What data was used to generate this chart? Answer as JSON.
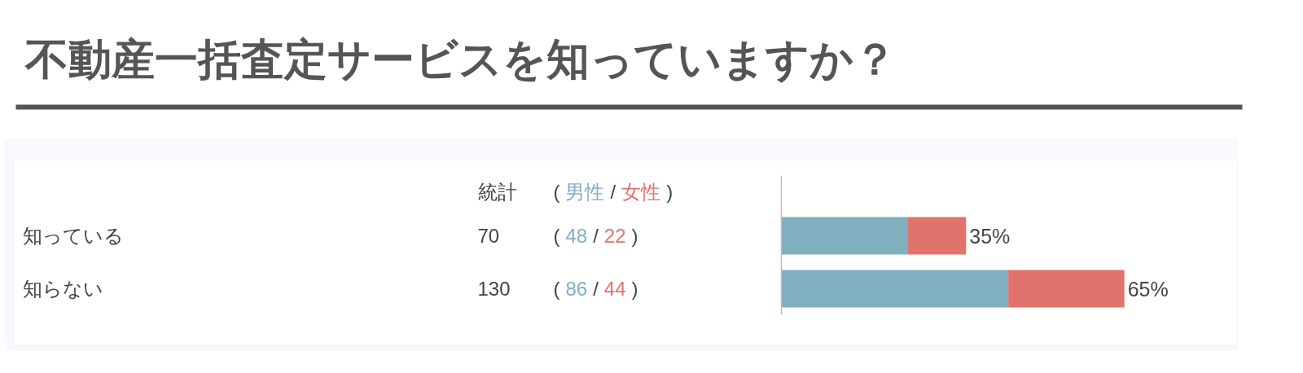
{
  "chart_data": {
    "type": "bar",
    "title": "不動産一括査定サービスを知っていますか？",
    "orientation": "horizontal",
    "stacked": true,
    "categories": [
      "知っている",
      "知らない"
    ],
    "series": [
      {
        "name": "男性",
        "color": "#80afbf",
        "values": [
          48,
          86
        ]
      },
      {
        "name": "女性",
        "color": "#e0736b",
        "values": [
          22,
          44
        ]
      }
    ],
    "data_labels": true,
    "tick_labels": "y",
    "grid": false,
    "annotations": [
      "統計",
      "70",
      "130",
      "(",
      "/",
      ")",
      {
        "text": "35%",
        "x": 70,
        "y": "知っている"
      },
      {
        "text": "65%",
        "x": 130,
        "y": "知らない"
      }
    ]
  }
}
